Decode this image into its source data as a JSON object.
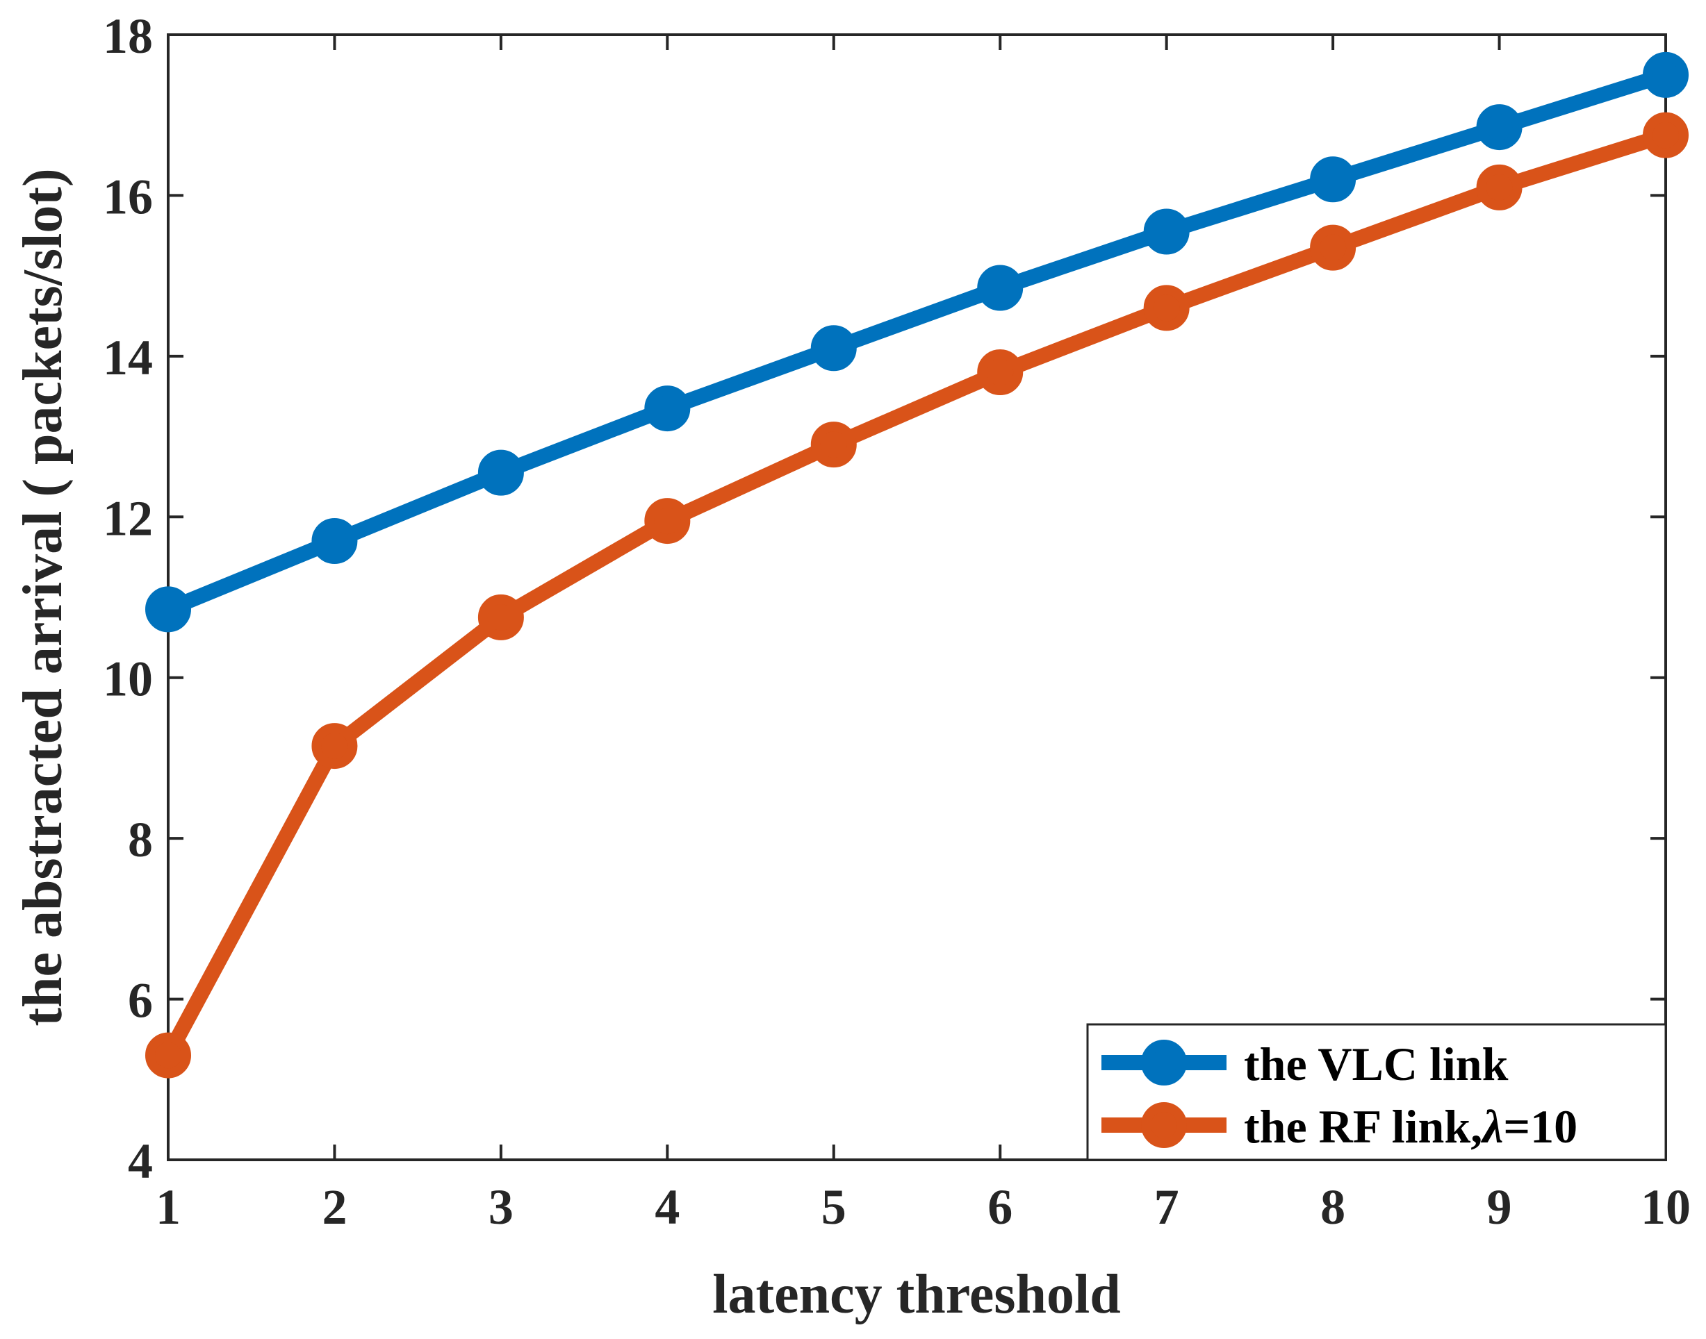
{
  "chart_data": {
    "type": "line",
    "title": "",
    "xlabel": "latency threshold",
    "ylabel": "the abstracted arrival ( packets/slot)",
    "xlim": [
      1,
      10
    ],
    "ylim": [
      4,
      18
    ],
    "xticks": [
      1,
      2,
      3,
      4,
      5,
      6,
      7,
      8,
      9,
      10
    ],
    "xtick_labels": [
      "1",
      "2",
      "3",
      "4",
      "5",
      "6",
      "7",
      "8",
      "9",
      "10"
    ],
    "yticks": [
      4,
      6,
      8,
      10,
      12,
      14,
      16,
      18
    ],
    "ytick_labels": [
      "4",
      "6",
      "8",
      "10",
      "12",
      "14",
      "16",
      "18"
    ],
    "grid": false,
    "legend_position": "bottom-right",
    "x": [
      1,
      2,
      3,
      4,
      5,
      6,
      7,
      8,
      9,
      10
    ],
    "series": [
      {
        "name": "the VLC link",
        "color": "#0072BD",
        "marker": "circle",
        "values": [
          10.85,
          11.7,
          12.55,
          13.35,
          14.1,
          14.85,
          15.55,
          16.2,
          16.85,
          17.5
        ]
      },
      {
        "name": "the RF link,λ=10",
        "legend_prefix": "the RF link,",
        "legend_symbol": "λ",
        "legend_suffix": "=10",
        "color": "#D95319",
        "marker": "circle",
        "values": [
          5.3,
          9.15,
          10.75,
          11.95,
          12.9,
          13.8,
          14.6,
          15.35,
          16.1,
          16.75
        ]
      }
    ]
  }
}
